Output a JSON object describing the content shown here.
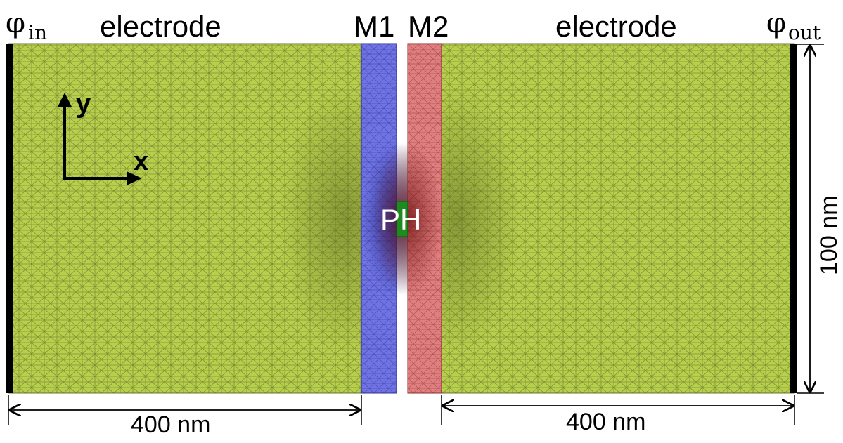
{
  "labels": {
    "phi_in_symbol": "φ",
    "phi_in_sub": "in",
    "phi_out_symbol": "φ",
    "phi_out_sub": "out",
    "electrode_left": "electrode",
    "electrode_right": "electrode",
    "m1": "M1",
    "m2": "M2",
    "ph": "PH",
    "axis_x": "x",
    "axis_y": "y",
    "dim_left": "400 nm",
    "dim_right": "400 nm",
    "dim_height": "100 nm"
  },
  "colors": {
    "electrode": "#b7cf4c",
    "m1": "#6f73e3",
    "m2": "#e07f7f",
    "ph": "#1f8a1f",
    "mesh_line": "#4f5a1e",
    "contact": "#000000"
  }
}
